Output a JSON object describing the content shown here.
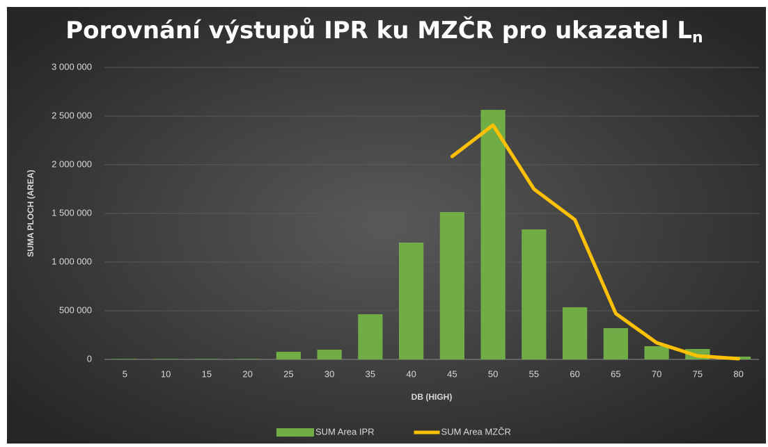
{
  "chart_data": {
    "type": "bar_line",
    "title": {
      "text": "Porovnání výstupů IPR ku MZČR pro ukazatel L",
      "subscript": "n"
    },
    "x_label": "DB (HIGH)",
    "y_label": "SUMA PLOCH (AREA)",
    "categories": [
      "5",
      "10",
      "15",
      "20",
      "25",
      "30",
      "35",
      "40",
      "45",
      "50",
      "55",
      "60",
      "65",
      "70",
      "75",
      "80"
    ],
    "series": [
      {
        "name": "SUM Area IPR",
        "type": "bar",
        "color": "#70ad47",
        "values": [
          5000,
          5000,
          5000,
          5000,
          78000,
          100000,
          464000,
          1200000,
          1514000,
          2564000,
          1336000,
          536000,
          321000,
          136000,
          107000,
          29000
        ]
      },
      {
        "name": "SUM Area MZČR",
        "type": "line",
        "color": "#ffc000",
        "values": [
          null,
          null,
          null,
          null,
          null,
          null,
          null,
          null,
          2086000,
          2407000,
          1750000,
          1436000,
          471000,
          171000,
          36000,
          7000
        ]
      }
    ],
    "ylim": [
      0,
      3000000
    ],
    "yticks": [
      0,
      {
        "value": 500000,
        "label": "500 000"
      },
      {
        "value": 1000000,
        "label": "1 000 000"
      },
      {
        "value": 1500000,
        "label": "1 500 000"
      },
      {
        "value": 2000000,
        "label": "2 000 000"
      },
      {
        "value": 2500000,
        "label": "2 500 000"
      },
      {
        "value": 3000000,
        "label": "3 000 000"
      }
    ],
    "grid": true,
    "legend": "bottom"
  }
}
